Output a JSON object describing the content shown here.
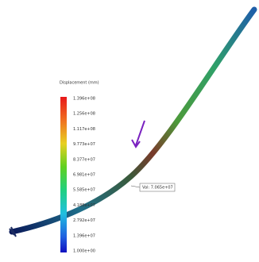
{
  "legend": {
    "title": "Displacement (mm)",
    "labels": [
      "1.396e+08",
      "1.256e+08",
      "1.117e+08",
      "9.773e+07",
      "8.377e+07",
      "6.981e+07",
      "5.585e+07",
      "4.188e+07",
      "2.792e+07",
      "1.396e+07",
      "1.000e+00"
    ]
  },
  "probe": {
    "label": "Val: 7.065e+07"
  }
}
